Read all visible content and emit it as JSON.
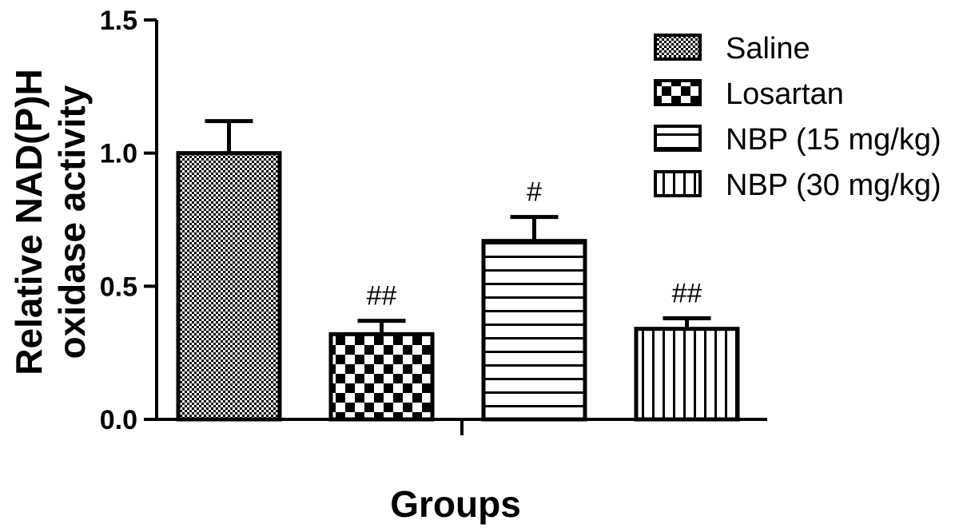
{
  "chart_data": {
    "type": "bar",
    "title": "",
    "xlabel": "Groups",
    "ylabel_lines": [
      "Relative NAD(P)H",
      "oxidase activity"
    ],
    "ylim": [
      0,
      1.5
    ],
    "yticks": [
      "0.0",
      "0.5",
      "1.0",
      "1.5"
    ],
    "grid": false,
    "legend_position": "top-right",
    "categories": [
      "Saline",
      "Losartan",
      "NBP (15 mg/kg)",
      "NBP (30 mg/kg)"
    ],
    "values": [
      1.0,
      0.32,
      0.67,
      0.34
    ],
    "errors": [
      0.12,
      0.05,
      0.09,
      0.04
    ],
    "annotations": [
      "",
      "##",
      "#",
      "##"
    ],
    "patterns": [
      "fine-check",
      "coarse-check",
      "horizontal-lines",
      "vertical-lines"
    ],
    "colors": {
      "bar_fill": "#ffffff",
      "pattern": "#000000",
      "axis": "#000000"
    }
  }
}
